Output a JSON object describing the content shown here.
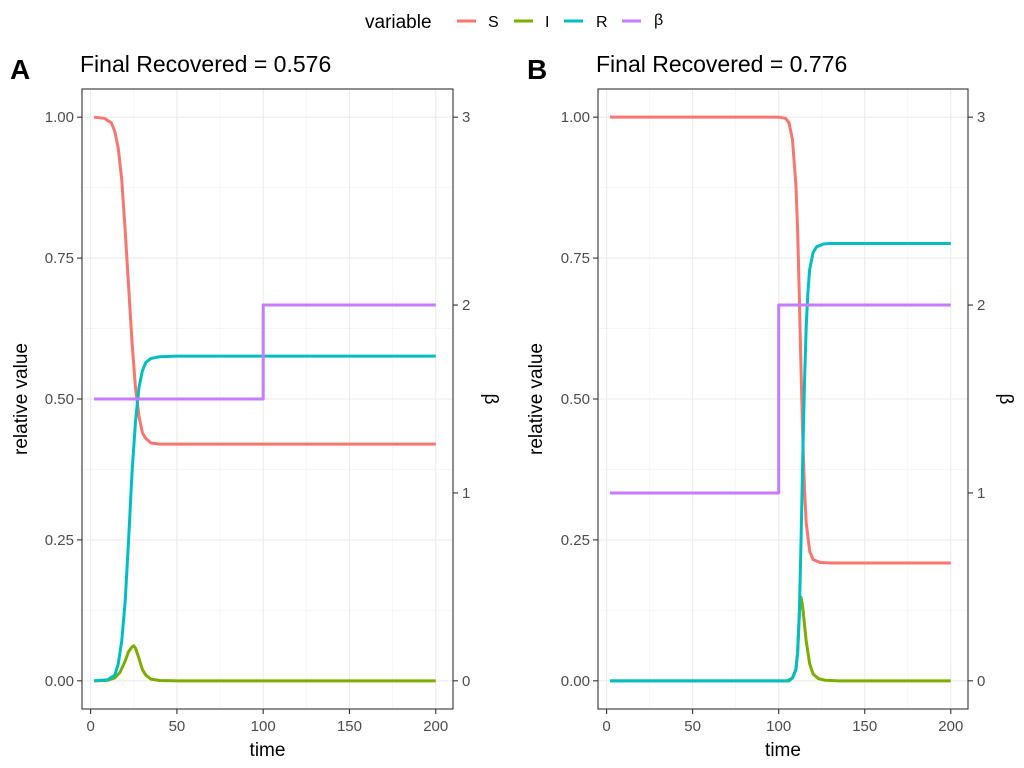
{
  "legend": {
    "title": "variable",
    "entries": [
      {
        "label": "S",
        "color": "#F8766D"
      },
      {
        "label": "I",
        "color": "#7CAE00"
      },
      {
        "label": "R",
        "color": "#00BFC4"
      },
      {
        "label": "β",
        "color": "#C77CFF"
      }
    ]
  },
  "chart_data": [
    {
      "type": "line",
      "panel_tag": "A",
      "title": "Final Recovered = 0.576",
      "xlabel": "time",
      "ylabel": "relative value",
      "y2label": "β",
      "xlim": [
        -5,
        210
      ],
      "ylim": [
        -0.05,
        1.05
      ],
      "y2lim": [
        -0.15,
        3.15
      ],
      "xticks": [
        0,
        50,
        100,
        150,
        200
      ],
      "yticks": [
        "0.00",
        "0.25",
        "0.50",
        "0.75",
        "1.00"
      ],
      "y2ticks": [
        0,
        1,
        2,
        3
      ],
      "grid": true,
      "legend": "top",
      "series": [
        {
          "name": "S",
          "axis": "left",
          "color": "#F8766D",
          "x": [
            2,
            8,
            12,
            14,
            16,
            18,
            20,
            22,
            24,
            26,
            28,
            30,
            32,
            35,
            40,
            50,
            100,
            200
          ],
          "y": [
            1.0,
            0.998,
            0.99,
            0.975,
            0.945,
            0.89,
            0.8,
            0.7,
            0.6,
            0.52,
            0.47,
            0.44,
            0.43,
            0.422,
            0.42,
            0.42,
            0.42,
            0.42
          ]
        },
        {
          "name": "I",
          "axis": "left",
          "color": "#7CAE00",
          "x": [
            2,
            10,
            14,
            17,
            20,
            22,
            24,
            25,
            26,
            28,
            30,
            32,
            35,
            40,
            50,
            200
          ],
          "y": [
            0,
            0.001,
            0.005,
            0.015,
            0.035,
            0.052,
            0.06,
            0.062,
            0.058,
            0.04,
            0.02,
            0.01,
            0.003,
            0.0005,
            0,
            0
          ]
        },
        {
          "name": "R",
          "axis": "left",
          "color": "#00BFC4",
          "x": [
            2,
            10,
            14,
            16,
            18,
            20,
            22,
            24,
            26,
            28,
            30,
            32,
            35,
            40,
            50,
            200
          ],
          "y": [
            0,
            0.002,
            0.01,
            0.03,
            0.07,
            0.14,
            0.25,
            0.37,
            0.46,
            0.52,
            0.55,
            0.565,
            0.572,
            0.575,
            0.576,
            0.576
          ]
        },
        {
          "name": "β",
          "axis": "right",
          "color": "#C77CFF",
          "step": true,
          "x": [
            2,
            100,
            100,
            200
          ],
          "y": [
            1.5,
            1.5,
            2,
            2
          ]
        }
      ]
    },
    {
      "type": "line",
      "panel_tag": "B",
      "title": "Final Recovered = 0.776",
      "xlabel": "time",
      "ylabel": "relative value",
      "y2label": "β",
      "xlim": [
        -5,
        210
      ],
      "ylim": [
        -0.05,
        1.05
      ],
      "y2lim": [
        -0.15,
        3.15
      ],
      "xticks": [
        0,
        50,
        100,
        150,
        200
      ],
      "yticks": [
        "0.00",
        "0.25",
        "0.50",
        "0.75",
        "1.00"
      ],
      "y2ticks": [
        0,
        1,
        2,
        3
      ],
      "grid": true,
      "legend": "top",
      "series": [
        {
          "name": "S",
          "axis": "left",
          "color": "#F8766D",
          "x": [
            2,
            100,
            104,
            106,
            108,
            110,
            111,
            112,
            113,
            114,
            115,
            116,
            118,
            120,
            124,
            130,
            200
          ],
          "y": [
            1.0,
            1.0,
            0.998,
            0.99,
            0.96,
            0.88,
            0.8,
            0.68,
            0.55,
            0.43,
            0.34,
            0.28,
            0.23,
            0.215,
            0.21,
            0.209,
            0.209
          ]
        },
        {
          "name": "I",
          "axis": "left",
          "color": "#7CAE00",
          "x": [
            2,
            105,
            108,
            110,
            111,
            112,
            113,
            114,
            115,
            116,
            118,
            120,
            123,
            127,
            135,
            200
          ],
          "y": [
            0,
            0.0,
            0.005,
            0.02,
            0.05,
            0.12,
            0.148,
            0.13,
            0.1,
            0.07,
            0.03,
            0.012,
            0.004,
            0.001,
            0,
            0
          ]
        },
        {
          "name": "R",
          "axis": "left",
          "color": "#00BFC4",
          "x": [
            2,
            106,
            108,
            110,
            111,
            112,
            113,
            114,
            115,
            116,
            117,
            118,
            120,
            122,
            126,
            130,
            200
          ],
          "y": [
            0,
            0.0,
            0.005,
            0.02,
            0.05,
            0.12,
            0.25,
            0.4,
            0.53,
            0.63,
            0.69,
            0.73,
            0.76,
            0.77,
            0.775,
            0.776,
            0.776
          ]
        },
        {
          "name": "β",
          "axis": "right",
          "color": "#C77CFF",
          "step": true,
          "x": [
            2,
            100,
            100,
            200
          ],
          "y": [
            1,
            1,
            2,
            2
          ]
        }
      ]
    }
  ]
}
